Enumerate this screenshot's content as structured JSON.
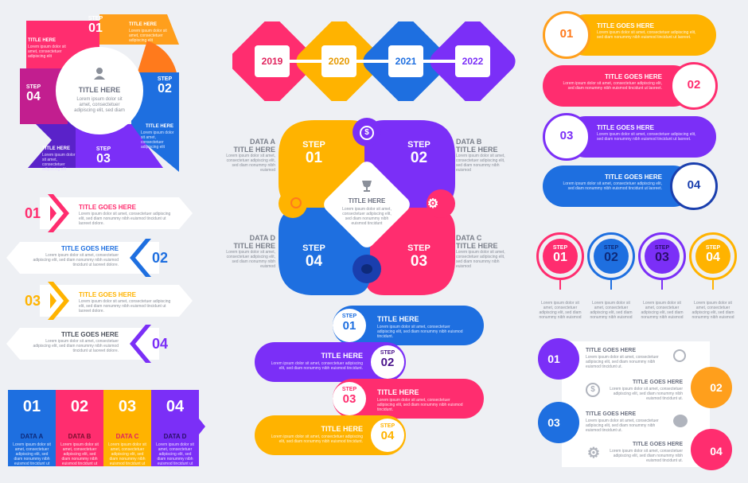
{
  "colors": {
    "orange": "#ff9f1c",
    "blue": "#1e6fe0",
    "pink": "#ff2d6f",
    "purple": "#7b2ff7",
    "magenta": "#c21e8f",
    "darkblue": "#1a3fae",
    "yellow": "#ffb300"
  },
  "wheel": {
    "center_title": "TITLE HERE",
    "center_text": "Lorem ipsum dolor sit amet, consectetuer adipiscing elit, sed diam",
    "step1_word": "STEP",
    "step1_num": "01",
    "step2_word": "STEP",
    "step2_num": "02",
    "step3_word": "STEP",
    "step3_num": "03",
    "step4_word": "STEP",
    "step4_num": "04",
    "title_tl": "TITLE HERE",
    "title_tr": "TITLE HERE",
    "title_br": "TITLE HERE",
    "title_bl": "TITLE HERE",
    "small": "Lorem ipsum dolor sit amet, consectetuer adipiscing elit"
  },
  "timeline": {
    "years": [
      "2019",
      "2020",
      "2021",
      "2022"
    ]
  },
  "diamond": {
    "step1": "01",
    "step2": "02",
    "step3": "03",
    "step4": "04",
    "step_word": "STEP",
    "center_title": "TITLE HERE",
    "center_text": "Lorem ipsum dolor sit amet, consectetuer adipiscing elit, sed diam nonummy nibh euismod tincidunt",
    "data_a": "DATA A",
    "data_b": "DATA B",
    "data_c": "DATA C",
    "data_d": "DATA D",
    "title": "TITLE HERE",
    "desc": "Lorem ipsum dolor sit amet, consectetuer adipiscing elit, sed diam nonummy nibh euismod"
  },
  "pills_right": {
    "items": [
      {
        "num": "01",
        "title": "TITLE GOES HERE"
      },
      {
        "num": "02",
        "title": "TITLE GOES HERE"
      },
      {
        "num": "03",
        "title": "TITLE GOES HERE"
      },
      {
        "num": "04",
        "title": "TITLE GOES HERE"
      }
    ],
    "desc": "Lorem ipsum dolor sit amet, consectetuer adipiscing elit, sed diam nonummy nibh euismod tincidunt ut laoreet."
  },
  "arrows_left": {
    "items": [
      {
        "num": "01",
        "title": "TITLE GOES HERE"
      },
      {
        "num": "02",
        "title": "TITLE GOES HERE"
      },
      {
        "num": "03",
        "title": "TITLE GOES HERE"
      },
      {
        "num": "04",
        "title": "TITLE GOES HERE"
      }
    ],
    "desc": "Lorem ipsum dolor sit amet, consectetuer adipiscing elit, sed diam nonummy nibh euismod tincidunt ut laoreet dolore."
  },
  "pins": {
    "step_word": "STEP",
    "items": [
      "01",
      "02",
      "03",
      "04"
    ],
    "desc": "Lorem ipsum dolor sit amet, consectetuer adipiscing elit, sed diam nonummy nibh euismod"
  },
  "snake": {
    "step_word": "STEP",
    "items": [
      {
        "num": "01",
        "title": "TITLE HERE"
      },
      {
        "num": "02",
        "title": "TITLE HERE"
      },
      {
        "num": "03",
        "title": "TITLE HERE"
      },
      {
        "num": "04",
        "title": "TITLE HERE"
      }
    ],
    "desc": "Lorem ipsum dolor sit amet, consectetuer adipiscing elit, sed diam nonummy nibh euismod tincidunt."
  },
  "bottom_tabs": {
    "items": [
      {
        "num": "01",
        "label": "DATA A"
      },
      {
        "num": "02",
        "label": "DATA B"
      },
      {
        "num": "03",
        "label": "DATA C"
      },
      {
        "num": "04",
        "label": "DATA D"
      }
    ],
    "desc": "Lorem ipsum dolor sit amet, consectetuer adipiscing elit, sed diam nonummy nibh euismod tincidunt ut laoreet."
  },
  "list_card": {
    "items": [
      {
        "num": "01",
        "title": "TITLE GOES HERE"
      },
      {
        "num": "02",
        "title": "TITLE GOES HERE"
      },
      {
        "num": "03",
        "title": "TITLE GOES HERE"
      },
      {
        "num": "04",
        "title": "TITLE GOES HERE"
      }
    ],
    "desc": "Lorem ipsum dolor sit amet, consectetuer adipiscing elit, sed diam nonummy nibh euismod tincidunt ut."
  }
}
